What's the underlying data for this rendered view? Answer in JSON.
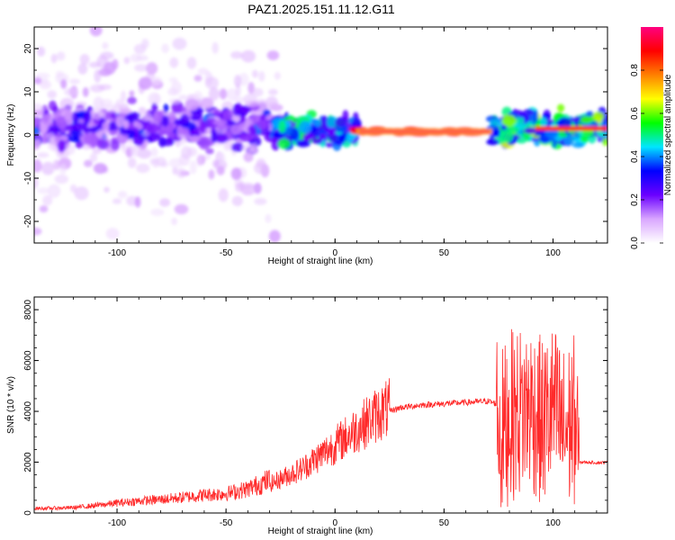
{
  "title": "PAZ1.2025.151.11.12.G11",
  "colors": {
    "signal": "#ff2a2a",
    "axis": "#000000",
    "colorbar_stops": [
      "#ffffff",
      "#d9a6ff",
      "#6a00ff",
      "#0000ff",
      "#00e5ff",
      "#00ff00",
      "#ffff00",
      "#ff8000",
      "#ff0000",
      "#ff0080"
    ]
  },
  "chart_data": [
    {
      "type": "heatmap",
      "xlabel": "Height of straight line (km)",
      "ylabel": "Frequency (Hz)",
      "xlim": [
        -138,
        125
      ],
      "ylim": [
        -25,
        25
      ],
      "x_ticks": [
        -100,
        -50,
        0,
        50,
        100
      ],
      "y_ticks": [
        -20,
        -10,
        0,
        10,
        20
      ],
      "grid": false,
      "colorbar": {
        "label": "Normalized spectral amplitude",
        "range": [
          0,
          1
        ],
        "ticks": [
          "0.0",
          "0.2",
          "0.4",
          "0.6",
          "0.8"
        ]
      },
      "regions": [
        {
          "x": [
            -138,
            -25
          ],
          "center_hz": 2,
          "spread_hz": 22,
          "typical_amplitude": 0.15
        },
        {
          "x": [
            -28,
            10
          ],
          "center_hz": 1,
          "spread_hz": 4,
          "typical_amplitude": 0.5
        },
        {
          "x": [
            10,
            72
          ],
          "center_hz": 0.8,
          "spread_hz": 1,
          "typical_amplitude": 0.95
        },
        {
          "x": [
            72,
            125
          ],
          "center_hz": 1.5,
          "spread_hz": 5,
          "typical_amplitude": 0.6
        }
      ]
    },
    {
      "type": "line",
      "xlabel": "Height of straight line (km)",
      "ylabel": "SNR (10 * v/v)",
      "xlim": [
        -138,
        125
      ],
      "ylim": [
        0,
        8500
      ],
      "x_ticks": [
        -100,
        -50,
        0,
        50,
        100
      ],
      "y_ticks": [
        0,
        2000,
        4000,
        6000,
        8000
      ],
      "grid": false,
      "series": [
        {
          "x": [
            -138,
            -130,
            -120,
            -110,
            -100,
            -90,
            -80,
            -70,
            -60,
            -50,
            -40,
            -30,
            -25,
            -20,
            -15,
            -10,
            -5,
            0,
            5,
            10,
            15,
            20,
            25,
            30,
            40,
            50,
            60,
            70,
            74,
            76,
            80,
            85,
            90,
            95,
            100,
            105,
            110,
            112,
            115,
            120,
            125
          ],
          "values": [
            150,
            160,
            180,
            250,
            330,
            400,
            450,
            520,
            600,
            650,
            800,
            1100,
            1300,
            1500,
            1700,
            2000,
            2300,
            2600,
            2900,
            3200,
            3500,
            3800,
            4000,
            4150,
            4250,
            4300,
            4350,
            4400,
            4300,
            3000,
            3800,
            4000,
            4200,
            3500,
            4100,
            3200,
            3700,
            2000,
            2000,
            1980,
            1990
          ]
        }
      ]
    }
  ]
}
